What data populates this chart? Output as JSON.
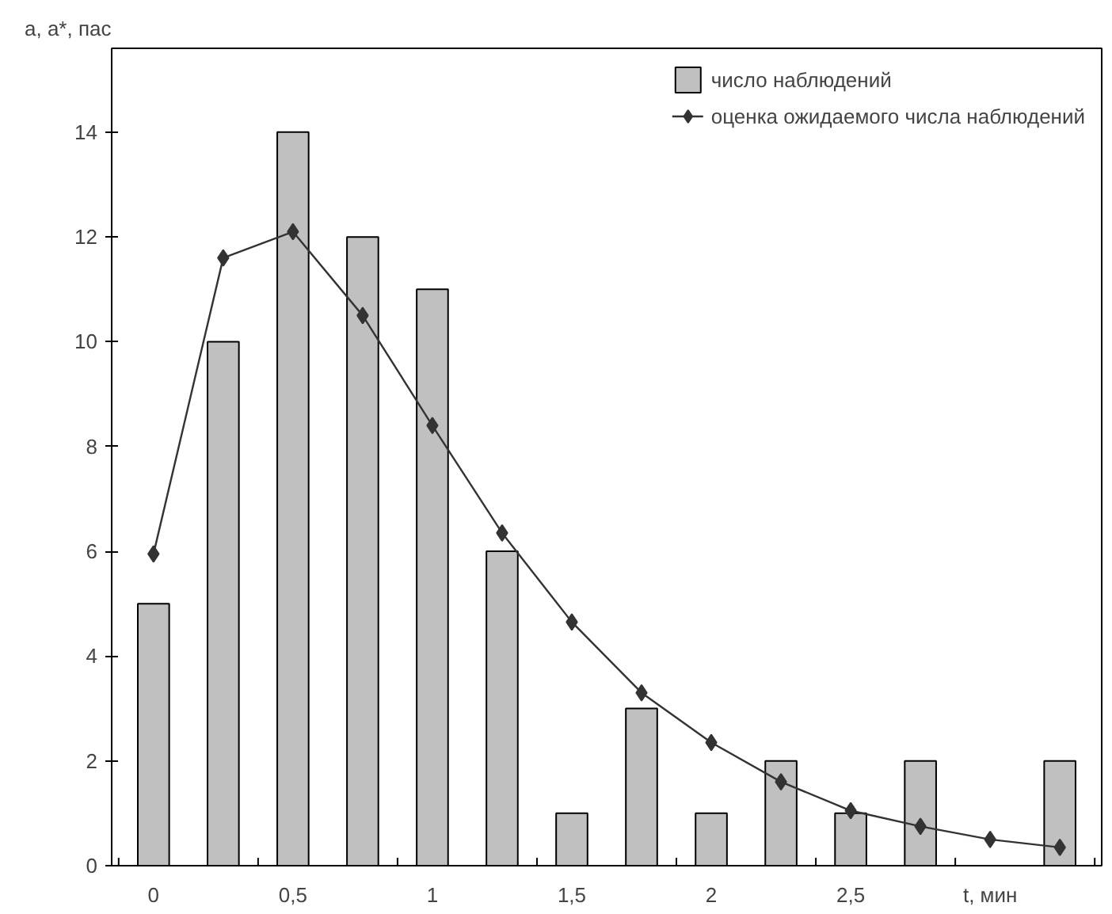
{
  "chart_data": {
    "type": "bar",
    "ylabel": "a, a*, пас",
    "categories": [
      "0",
      null,
      "0,5",
      null,
      "1",
      null,
      "1,5",
      null,
      "2",
      null,
      "2,5",
      null,
      "t, мин",
      null
    ],
    "series": [
      {
        "name": "число наблюдений",
        "color": "#c0c0c0",
        "values": [
          5,
          10,
          14,
          12,
          11,
          6,
          1,
          3,
          1,
          2,
          1,
          2,
          null,
          2
        ]
      },
      {
        "name": "оценка ожидаемого числа наблюдений",
        "type": "line",
        "color": "#333333",
        "marker": "diamond",
        "values": [
          5.95,
          11.6,
          12.1,
          10.5,
          8.4,
          6.35,
          4.65,
          3.3,
          2.35,
          1.6,
          1.05,
          0.75,
          0.5,
          0.35
        ]
      }
    ],
    "ylim": [
      0,
      15.6
    ],
    "yticks": [
      0,
      2,
      4,
      6,
      8,
      10,
      12,
      14
    ],
    "grid": false,
    "legend": "top right"
  }
}
